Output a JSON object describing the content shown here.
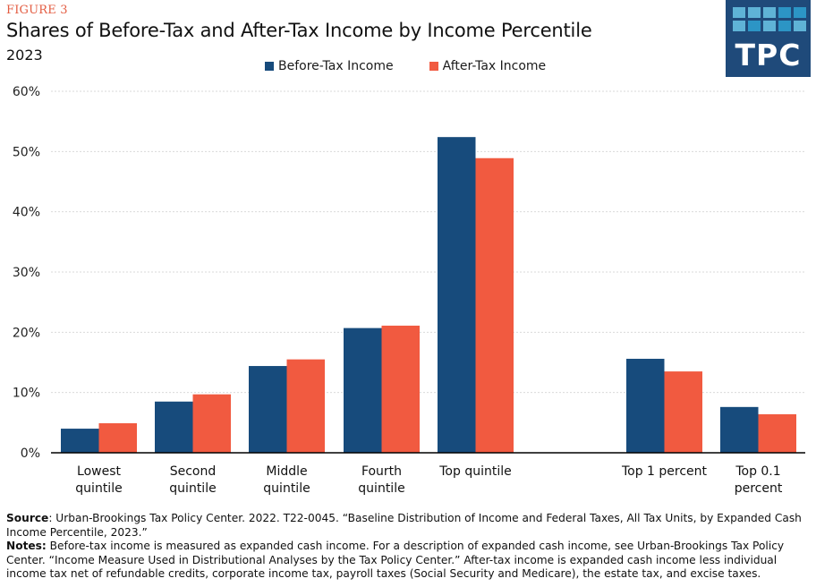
{
  "header": {
    "figure_label": "FIGURE 3",
    "title": "Shares of Before-Tax and After-Tax Income by Income Percentile",
    "subtitle": "2023",
    "logo_text": "TPC"
  },
  "colors": {
    "before_tax": "#174b7c",
    "after_tax": "#f15a40",
    "figure_label": "#e35b40",
    "logo_bg": "#1f4a7a",
    "gridline": "#d9d9d9"
  },
  "chart_data": {
    "type": "bar",
    "title": "Shares of Before-Tax and After-Tax Income by Income Percentile",
    "subtitle": "2023",
    "xlabel": "",
    "ylabel": "",
    "ylim": [
      0,
      60
    ],
    "yticks": [
      0,
      10,
      20,
      30,
      40,
      50,
      60
    ],
    "ytick_labels": [
      "0%",
      "10%",
      "20%",
      "30%",
      "40%",
      "50%",
      "60%"
    ],
    "grid": true,
    "legend_position": "top-center",
    "categories": [
      [
        "Lowest",
        "quintile"
      ],
      [
        "Second",
        "quintile"
      ],
      [
        "Middle",
        "quintile"
      ],
      [
        "Fourth",
        "quintile"
      ],
      [
        "Top quintile"
      ],
      [
        "Top 1 percent"
      ],
      [
        "Top 0.1",
        "percent"
      ]
    ],
    "series": [
      {
        "name": "Before-Tax Income",
        "values": [
          4.0,
          8.5,
          14.4,
          20.7,
          52.4,
          15.6,
          7.6
        ]
      },
      {
        "name": "After-Tax Income",
        "values": [
          4.9,
          9.7,
          15.5,
          21.1,
          48.9,
          13.5,
          6.4
        ]
      }
    ]
  },
  "footer": {
    "source_label": "Source",
    "source_text": ": Urban-Brookings Tax Policy Center. 2022. T22-0045. “Baseline Distribution of Income and Federal Taxes, All Tax Units, by Expanded Cash Income Percentile, 2023.”",
    "notes_label": "Notes:",
    "notes_text": " Before-tax income is measured as expanded cash income. For a description of expanded cash income, see Urban-Brookings Tax Policy Center. “Income Measure Used in Distributional Analyses by the Tax Policy Center.” After-tax income is expanded cash income less individual income tax net of refundable credits, corporate income tax, payroll taxes (Social Security and Medicare), the estate tax, and excise taxes."
  }
}
